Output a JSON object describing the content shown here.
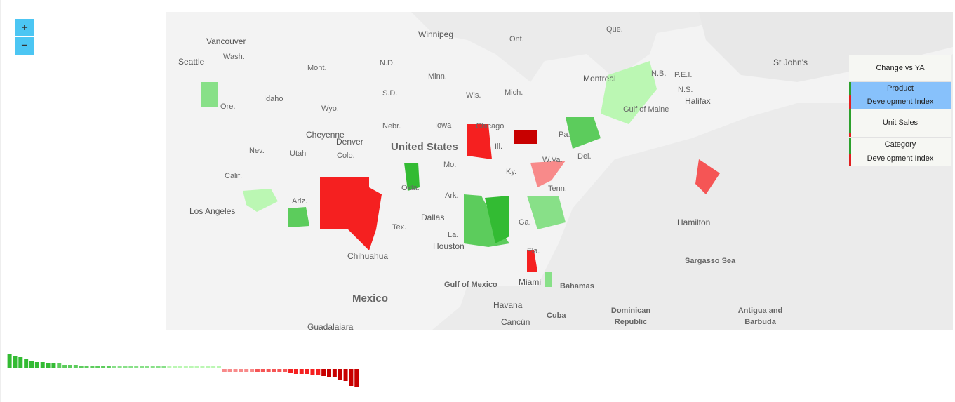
{
  "controls": {
    "zoom_in": "+",
    "zoom_out": "−"
  },
  "legend": {
    "title": "Change vs YA",
    "items": [
      {
        "line1": "Product",
        "line2": "Development Index",
        "active": true
      },
      {
        "line1": "Unit Sales",
        "line2": "",
        "active": false
      },
      {
        "line1": "Category",
        "line2": "Development Index",
        "active": false
      }
    ],
    "positive_color": "#2ca02c",
    "negative_color": "#e02020",
    "active_color": "#87c1fb"
  },
  "map_labels": {
    "vancouver": "Vancouver",
    "winnipeg": "Winnipeg",
    "ont": "Ont.",
    "que": "Que.",
    "seattle": "Seattle",
    "wash": "Wash.",
    "mont": "Mont.",
    "nd": "N.D.",
    "minn": "Minn.",
    "montreal": "Montreal",
    "nb": "N.B.",
    "pei": "P.E.I.",
    "ns": "N.S.",
    "halifax": "Halifax",
    "stjohns": "St John's",
    "ore": "Ore.",
    "idaho": "Idaho",
    "wyo": "Wyo.",
    "sd": "S.D.",
    "wis": "Wis.",
    "mich": "Mich.",
    "gulfmaine": "Gulf of Maine",
    "nebr": "Nebr.",
    "iowa": "Iowa",
    "chicago": "Chicago",
    "cheyenne": "Cheyenne",
    "denver": "Denver",
    "nev": "Nev.",
    "utah": "Utah",
    "colo": "Colo.",
    "us": "United States",
    "pa": "Pa.",
    "ill": "Ill.",
    "mo": "Mo.",
    "ky": "Ky.",
    "wva": "W.Va.",
    "del": "Del.",
    "calif": "Calif.",
    "okla": "Okla.",
    "ark": "Ark.",
    "ariz": "Ariz.",
    "tenn": "Tenn.",
    "la": "Los Angeles",
    "dallas": "Dallas",
    "ga": "Ga.",
    "hamilton": "Hamilton",
    "tex": "Tex.",
    "lou": "La.",
    "houston": "Houston",
    "chihuahua": "Chihuahua",
    "sargasso": "Sargasso Sea",
    "fla": "Fla.",
    "miami": "Miami",
    "gulfmex": "Gulf of Mexico",
    "bahamas": "Bahamas",
    "mexico": "Mexico",
    "havana": "Havana",
    "cancun": "Cancún",
    "cuba": "Cuba",
    "dominican": "Dominican Republic",
    "antigua": "Antigua and Barbuda",
    "guadalajara": "Guadalajara"
  },
  "chart_data": {
    "type": "bar",
    "title": "",
    "values": [
      20,
      18,
      16,
      13,
      10,
      9,
      9,
      8,
      7,
      7,
      5,
      5,
      5,
      4,
      4,
      4,
      4,
      4,
      4,
      4,
      4,
      4,
      4,
      4,
      4,
      4,
      4,
      4,
      4,
      4,
      4,
      4,
      4,
      4,
      4,
      4,
      4,
      4,
      4,
      -4,
      -4,
      -4,
      -4,
      -4,
      -4,
      -4,
      -4,
      -4,
      -4,
      -4,
      -4,
      -5,
      -7,
      -7,
      -7,
      -8,
      -8,
      -10,
      -11,
      -12,
      -16,
      -17,
      -24,
      -26
    ],
    "color_scale": [
      "#33bb33",
      "#5ccc5c",
      "#88e088",
      "#bbf7b3",
      "#f88a8a",
      "#f55555",
      "#f52020",
      "#c80000"
    ]
  }
}
